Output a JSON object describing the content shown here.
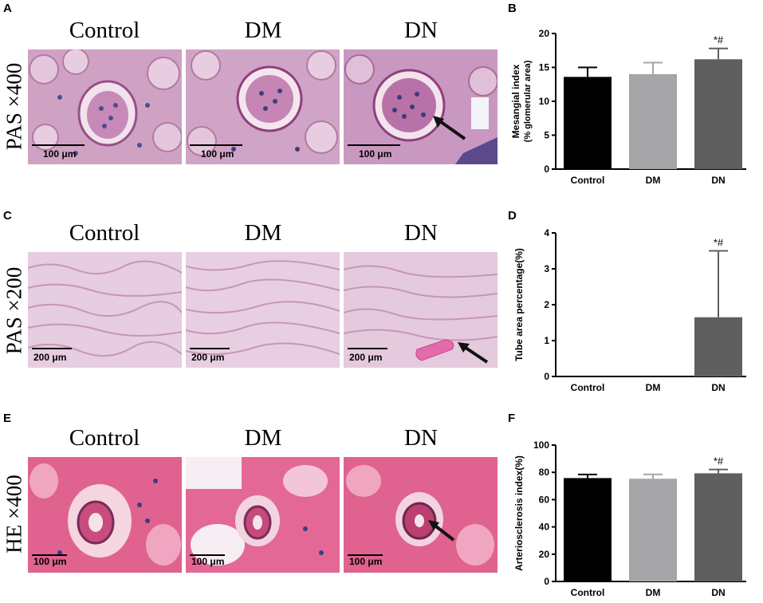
{
  "panels": {
    "A": "A",
    "B": "B",
    "C": "C",
    "D": "D",
    "E": "E",
    "F": "F"
  },
  "groups": [
    "Control",
    "DM",
    "DN"
  ],
  "stains": {
    "row1": "PAS ×400",
    "row2": "PAS ×200",
    "row3": "HE ×400"
  },
  "scalebars": {
    "row1": "100 μm",
    "row2": "200 μm",
    "row3": "100 μm"
  },
  "colors": {
    "control_bar": "#000000",
    "dm_bar": "#a5a5a7",
    "dn_bar": "#5f5f5f",
    "pas_bg": "#d9a9cc",
    "pas_low_bg": "#ead3e4",
    "he_bg": "#e0608f"
  },
  "chart_data": [
    {
      "type": "bar",
      "panel": "B",
      "categories": [
        "Control",
        "DM",
        "DN"
      ],
      "values": [
        13.6,
        14.0,
        16.2
      ],
      "errors": [
        1.4,
        1.7,
        1.6
      ],
      "annotations": [
        "",
        "",
        "*#"
      ],
      "ylabel_line1": "Mesangial index",
      "ylabel_line2": "(% glomerular area)",
      "ylim": [
        0,
        20
      ],
      "yticks": [
        "0",
        "5",
        "10",
        "15",
        "20"
      ]
    },
    {
      "type": "bar",
      "panel": "D",
      "categories": [
        "Control",
        "DM",
        "DN"
      ],
      "values": [
        0,
        0,
        1.65
      ],
      "errors": [
        0,
        0,
        1.85
      ],
      "annotations": [
        "",
        "",
        "*#"
      ],
      "ylabel_line1": "Tube area percentage(%)",
      "ylabel_line2": "",
      "ylim": [
        0,
        4
      ],
      "yticks": [
        "0",
        "1",
        "2",
        "3",
        "4"
      ]
    },
    {
      "type": "bar",
      "panel": "F",
      "categories": [
        "Control",
        "DM",
        "DN"
      ],
      "values": [
        75.8,
        75.3,
        79.3
      ],
      "errors": [
        2.6,
        3.2,
        2.8
      ],
      "annotations": [
        "",
        "",
        "*#"
      ],
      "ylabel_line1": "Arteriosclerosis index(%)",
      "ylabel_line2": "",
      "ylim": [
        0,
        100
      ],
      "yticks": [
        "0",
        "20",
        "40",
        "60",
        "80",
        "100"
      ]
    }
  ]
}
